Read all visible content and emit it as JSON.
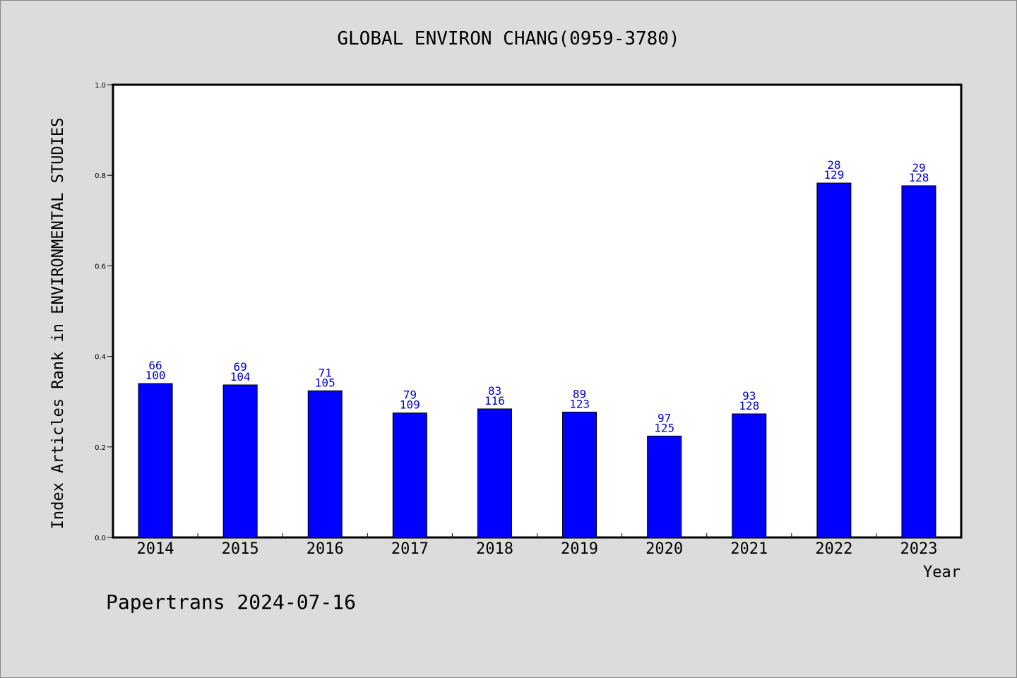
{
  "chart_data": {
    "type": "bar",
    "title": "GLOBAL ENVIRON CHANG(0959-3780)",
    "xlabel": "Year",
    "ylabel": "Index Articles Rank in ENVIRONMENTAL STUDIES",
    "ylim": [
      0,
      1.0
    ],
    "yticks": [
      "0.0",
      "0.2",
      "0.4",
      "0.6",
      "0.8",
      "1.0"
    ],
    "categories": [
      "2014",
      "2015",
      "2016",
      "2017",
      "2018",
      "2019",
      "2020",
      "2021",
      "2022",
      "2023"
    ],
    "values": [
      0.34,
      0.337,
      0.324,
      0.275,
      0.284,
      0.277,
      0.224,
      0.273,
      0.783,
      0.777
    ],
    "rank": [
      "66",
      "69",
      "71",
      "79",
      "83",
      "89",
      "97",
      "93",
      "28",
      "29"
    ],
    "total": [
      "100",
      "104",
      "105",
      "109",
      "116",
      "123",
      "125",
      "128",
      "129",
      "128"
    ],
    "bar_color": "#0000ff",
    "label_color": "#0000cc",
    "grid": false,
    "legend": "none"
  },
  "footer": "Papertrans 2024-07-16"
}
